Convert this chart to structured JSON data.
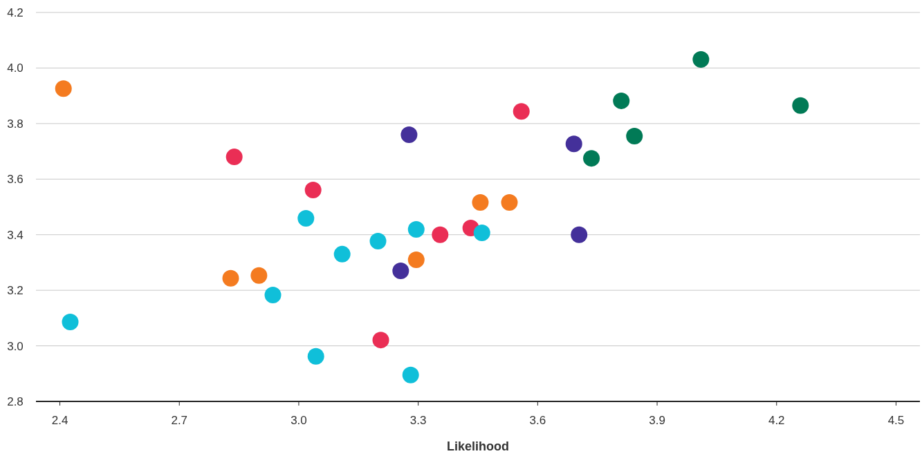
{
  "chart_data": {
    "type": "scatter",
    "xlabel": "Likelihood",
    "xlim": [
      2.34,
      4.56
    ],
    "xticks": [
      2.4,
      2.7,
      {
        "value": 3.0,
        "label": "3.0"
      },
      3.3,
      3.6,
      3.9,
      4.2,
      4.5
    ],
    "ylim": [
      2.8,
      4.2
    ],
    "yticks": [
      2.8,
      {
        "value": 3.0,
        "label": "3.0"
      },
      3.2,
      3.4,
      3.6,
      3.8,
      {
        "value": 4.0,
        "label": "4.0"
      },
      4.2
    ],
    "grid": "y",
    "marker": "circle",
    "series": [
      {
        "color": "#f47b20",
        "x": [
          2.409,
          2.829,
          2.9,
          3.295,
          3.456,
          3.529
        ],
        "values": [
          3.926,
          3.243,
          3.253,
          3.31,
          3.516,
          3.516
        ]
      },
      {
        "color": "#ea2e55",
        "x": [
          2.838,
          3.036,
          3.206,
          3.355,
          3.432,
          3.559
        ],
        "values": [
          3.68,
          3.561,
          3.021,
          3.4,
          3.424,
          3.844
        ]
      },
      {
        "color": "#10bfd9",
        "x": [
          2.426,
          3.018,
          2.935,
          3.043,
          3.109,
          3.199,
          3.281,
          3.295,
          3.46
        ],
        "values": [
          3.086,
          3.459,
          3.183,
          2.962,
          3.33,
          3.377,
          2.895,
          3.419,
          3.407
        ]
      },
      {
        "color": "#44309a",
        "x": [
          3.277,
          3.256,
          3.691,
          3.704
        ],
        "values": [
          3.76,
          3.27,
          3.727,
          3.4
        ]
      },
      {
        "color": "#017a56",
        "x": [
          4.01,
          3.81,
          3.843,
          3.735,
          4.26
        ],
        "values": [
          4.031,
          3.882,
          3.755,
          3.675,
          3.865
        ]
      }
    ]
  }
}
